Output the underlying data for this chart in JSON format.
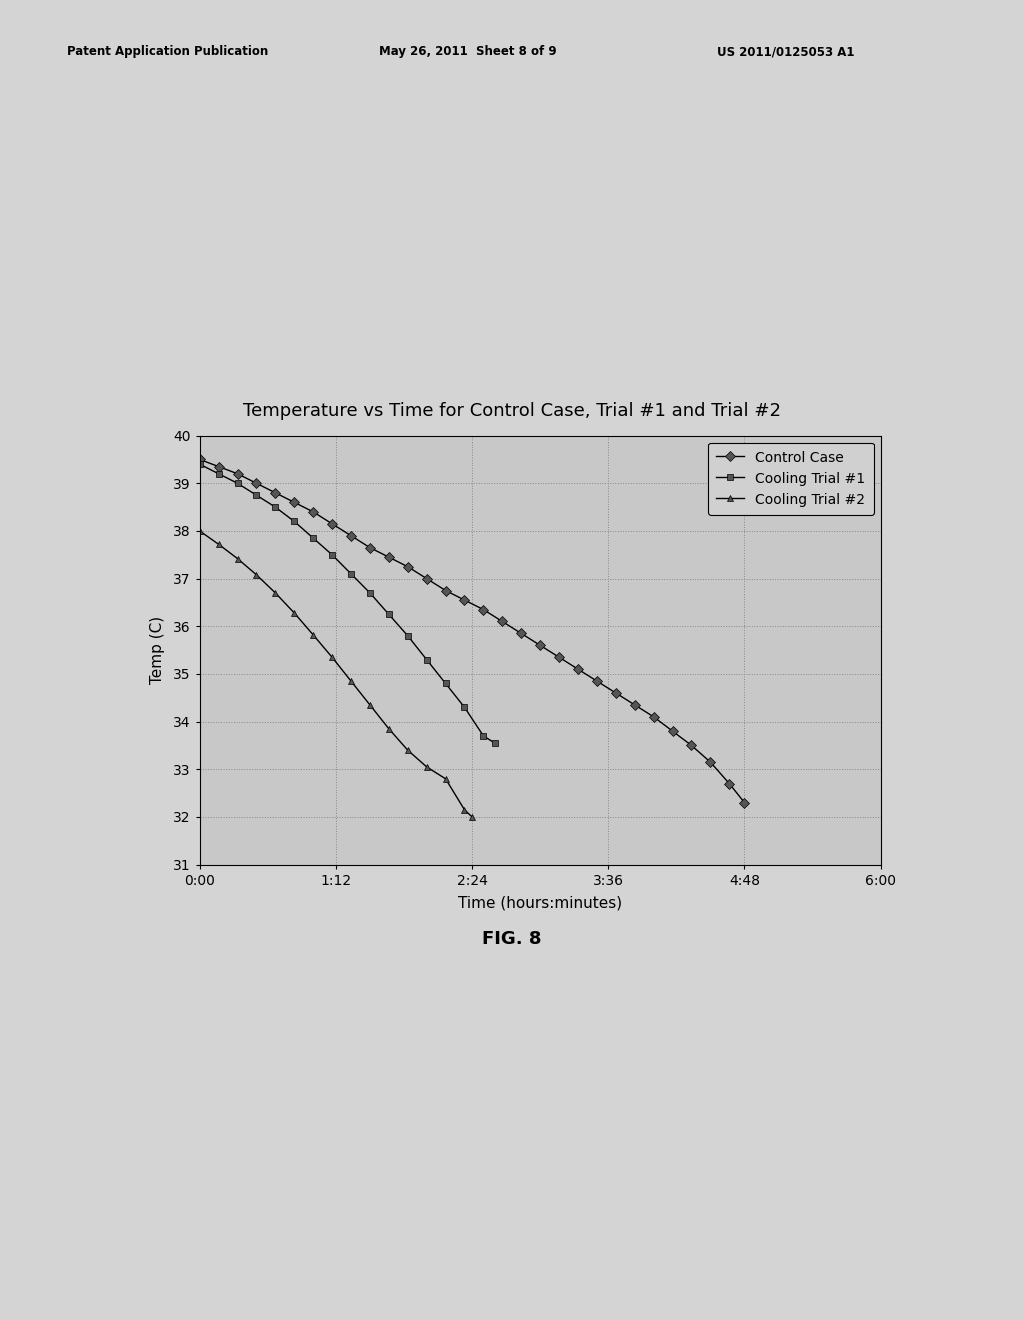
{
  "title": "Temperature vs Time for Control Case, Trial #1 and Trial #2",
  "xlabel": "Time (hours:minutes)",
  "ylabel": "Temp (C)",
  "background_color": "#e8e8e8",
  "plot_bg_color": "#d8d8d8",
  "header_left": "Patent Application Publication",
  "header_center": "May 26, 2011  Sheet 8 of 9",
  "header_right": "US 2011/0125053 A1",
  "footer": "FIG. 8",
  "ylim": [
    31,
    40
  ],
  "xlim_minutes": [
    0,
    360
  ],
  "xtick_minutes": [
    0,
    72,
    144,
    216,
    288,
    360
  ],
  "xtick_labels": [
    "0:00",
    "1:12",
    "2:24",
    "3:36",
    "4:48",
    "6:00"
  ],
  "yticks": [
    31,
    32,
    33,
    34,
    35,
    36,
    37,
    38,
    39,
    40
  ],
  "control_case": {
    "label": "Control Case",
    "marker": "D",
    "x_minutes": [
      0,
      10,
      20,
      30,
      40,
      50,
      60,
      70,
      80,
      90,
      100,
      110,
      120,
      130,
      140,
      150,
      160,
      170,
      180,
      190,
      200,
      210,
      220,
      230,
      240,
      250,
      260,
      270,
      280,
      288
    ],
    "y": [
      39.5,
      39.35,
      39.2,
      39.0,
      38.8,
      38.6,
      38.4,
      38.15,
      37.9,
      37.65,
      37.45,
      37.25,
      37.0,
      36.75,
      36.55,
      36.35,
      36.1,
      35.85,
      35.6,
      35.35,
      35.1,
      34.85,
      34.6,
      34.35,
      34.1,
      33.8,
      33.5,
      33.15,
      32.7,
      32.3
    ]
  },
  "trial1": {
    "label": "Cooling Trial #1",
    "marker": "s",
    "x_minutes": [
      0,
      10,
      20,
      30,
      40,
      50,
      60,
      70,
      80,
      90,
      100,
      110,
      120,
      130,
      140,
      150,
      156
    ],
    "y": [
      39.4,
      39.2,
      39.0,
      38.75,
      38.5,
      38.2,
      37.85,
      37.5,
      37.1,
      36.7,
      36.25,
      35.8,
      35.3,
      34.8,
      34.3,
      33.7,
      33.55
    ]
  },
  "trial2": {
    "label": "Cooling Trial #2",
    "marker": "^",
    "x_minutes": [
      0,
      10,
      20,
      30,
      40,
      50,
      60,
      70,
      80,
      90,
      100,
      110,
      120,
      130,
      140,
      144
    ],
    "y": [
      38.0,
      37.72,
      37.42,
      37.08,
      36.7,
      36.28,
      35.82,
      35.35,
      34.85,
      34.35,
      33.85,
      33.4,
      33.05,
      32.8,
      32.15,
      32.0
    ]
  }
}
